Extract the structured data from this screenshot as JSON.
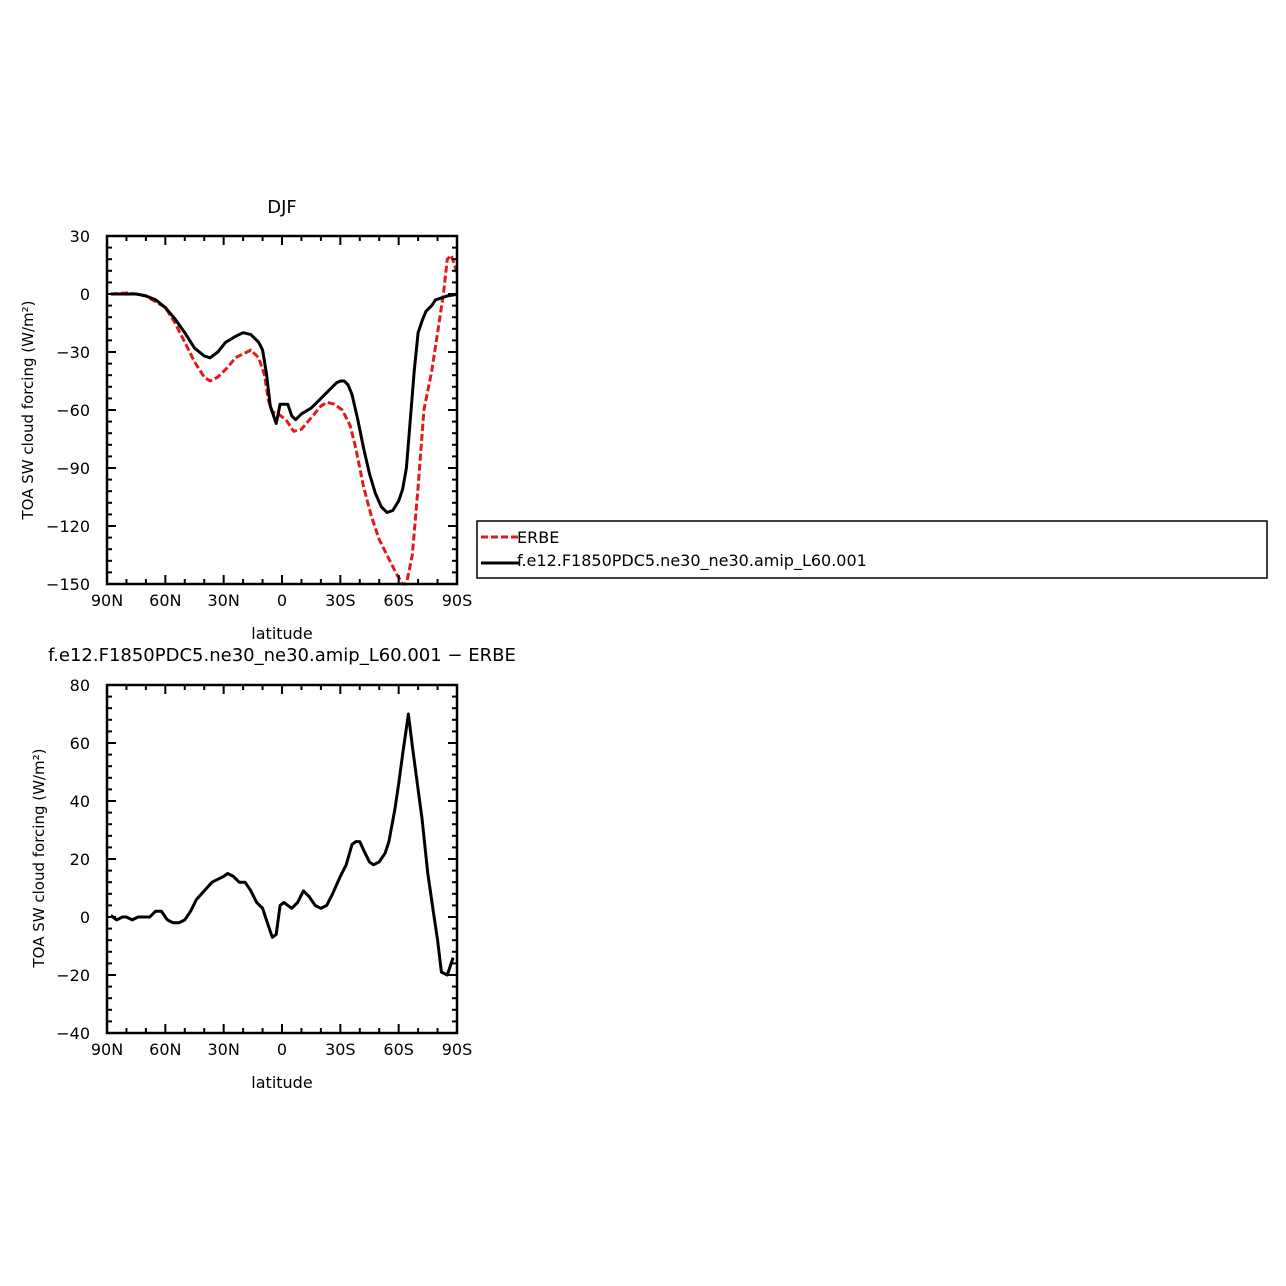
{
  "chart_data": [
    {
      "type": "line",
      "title": "DJF",
      "xlabel": "latitude",
      "ylabel": "TOA SW cloud forcing (W/m²)",
      "xlim": [
        90,
        -90
      ],
      "ylim": [
        -150,
        30
      ],
      "x_tick_values": [
        90,
        60,
        30,
        0,
        -30,
        -60,
        -90
      ],
      "x_tick_labels": [
        "90N",
        "60N",
        "30N",
        "0",
        "30S",
        "60S",
        "90S"
      ],
      "y_tick_values": [
        30,
        0,
        -30,
        -60,
        -90,
        -120,
        -150
      ],
      "y_tick_labels": [
        "30",
        "0",
        "−30",
        "−60",
        "−90",
        "−120",
        "−150"
      ],
      "legend": "right",
      "series": [
        {
          "name": "ERBE",
          "color": "#e31a1c",
          "dash": "dashed",
          "points": [
            [
              88,
              0
            ],
            [
              80,
              0.5
            ],
            [
              75,
              0
            ],
            [
              70,
              -1
            ],
            [
              65,
              -4
            ],
            [
              60,
              -7
            ],
            [
              55,
              -15
            ],
            [
              50,
              -25
            ],
            [
              45,
              -35
            ],
            [
              40,
              -43
            ],
            [
              37,
              -45
            ],
            [
              33,
              -43
            ],
            [
              28,
              -38
            ],
            [
              24,
              -33
            ],
            [
              20,
              -31
            ],
            [
              16,
              -29
            ],
            [
              12,
              -33
            ],
            [
              9,
              -42
            ],
            [
              7,
              -55
            ],
            [
              5,
              -61
            ],
            [
              2,
              -62
            ],
            [
              -2,
              -65
            ],
            [
              -6,
              -71
            ],
            [
              -10,
              -70
            ],
            [
              -15,
              -64
            ],
            [
              -20,
              -58
            ],
            [
              -23,
              -56
            ],
            [
              -27,
              -57
            ],
            [
              -31,
              -60
            ],
            [
              -35,
              -68
            ],
            [
              -38,
              -80
            ],
            [
              -42,
              -100
            ],
            [
              -46,
              -115
            ],
            [
              -50,
              -127
            ],
            [
              -55,
              -137
            ],
            [
              -59,
              -145
            ],
            [
              -62,
              -150
            ],
            [
              -64,
              -150
            ],
            [
              -67,
              -135
            ],
            [
              -70,
              -100
            ],
            [
              -73,
              -60
            ],
            [
              -77,
              -40
            ],
            [
              -80,
              -20
            ],
            [
              -83,
              0
            ],
            [
              -85,
              18
            ],
            [
              -87,
              20
            ],
            [
              -90,
              11
            ]
          ]
        },
        {
          "name": "f.e12.F1850PDC5.ne30_ne30.amip_L60.001",
          "color": "#000000",
          "dash": "solid",
          "points": [
            [
              88,
              0
            ],
            [
              80,
              0
            ],
            [
              75,
              0
            ],
            [
              70,
              -1
            ],
            [
              65,
              -3
            ],
            [
              60,
              -7
            ],
            [
              55,
              -13
            ],
            [
              50,
              -20
            ],
            [
              45,
              -28
            ],
            [
              40,
              -32
            ],
            [
              37,
              -33
            ],
            [
              33,
              -30
            ],
            [
              29,
              -25
            ],
            [
              24,
              -22
            ],
            [
              20,
              -20
            ],
            [
              16,
              -21
            ],
            [
              12,
              -25
            ],
            [
              10,
              -29
            ],
            [
              8,
              -41
            ],
            [
              6,
              -58
            ],
            [
              3,
              -67
            ],
            [
              1,
              -57
            ],
            [
              -3,
              -57
            ],
            [
              -5,
              -63
            ],
            [
              -7,
              -65
            ],
            [
              -10,
              -62
            ],
            [
              -15,
              -59
            ],
            [
              -20,
              -54
            ],
            [
              -25,
              -49
            ],
            [
              -28,
              -46
            ],
            [
              -30,
              -45
            ],
            [
              -32,
              -45
            ],
            [
              -34,
              -47
            ],
            [
              -36,
              -52
            ],
            [
              -39,
              -65
            ],
            [
              -42,
              -80
            ],
            [
              -45,
              -93
            ],
            [
              -48,
              -103
            ],
            [
              -51,
              -110
            ],
            [
              -54,
              -113
            ],
            [
              -57,
              -112
            ],
            [
              -60,
              -107
            ],
            [
              -62,
              -101
            ],
            [
              -64,
              -90
            ],
            [
              -66,
              -65
            ],
            [
              -68,
              -40
            ],
            [
              -70,
              -20
            ],
            [
              -72,
              -14
            ],
            [
              -74,
              -9
            ],
            [
              -77,
              -6
            ],
            [
              -79,
              -3
            ],
            [
              -82,
              -2
            ],
            [
              -85,
              -1
            ],
            [
              -88,
              -0.5
            ],
            [
              -90,
              0
            ]
          ]
        }
      ]
    },
    {
      "type": "line",
      "title": "f.e12.F1850PDC5.ne30_ne30.amip_L60.001 − ERBE",
      "xlabel": "latitude",
      "ylabel": "TOA SW cloud forcing (W/m²)",
      "xlim": [
        90,
        -90
      ],
      "ylim": [
        -40,
        80
      ],
      "x_tick_values": [
        90,
        60,
        30,
        0,
        -30,
        -60,
        -90
      ],
      "x_tick_labels": [
        "90N",
        "60N",
        "30N",
        "0",
        "30S",
        "60S",
        "90S"
      ],
      "y_tick_values": [
        80,
        60,
        40,
        20,
        0,
        -20,
        -40
      ],
      "y_tick_labels": [
        "80",
        "60",
        "40",
        "20",
        "0",
        "−20",
        "−40"
      ],
      "series": [
        {
          "color": "#000000",
          "dash": "solid",
          "points": [
            [
              88,
              0.5
            ],
            [
              85,
              -1
            ],
            [
              82,
              0
            ],
            [
              80,
              0
            ],
            [
              77,
              -1
            ],
            [
              74,
              0
            ],
            [
              71,
              0
            ],
            [
              68,
              0
            ],
            [
              65,
              2
            ],
            [
              62,
              2
            ],
            [
              59,
              -1
            ],
            [
              56,
              -2
            ],
            [
              53,
              -2
            ],
            [
              50,
              -1
            ],
            [
              47,
              2
            ],
            [
              44,
              6
            ],
            [
              40,
              9
            ],
            [
              36,
              12
            ],
            [
              33,
              13
            ],
            [
              30,
              14
            ],
            [
              28,
              15
            ],
            [
              25,
              14
            ],
            [
              22,
              12
            ],
            [
              19,
              12
            ],
            [
              16,
              9
            ],
            [
              13,
              5
            ],
            [
              10,
              3
            ],
            [
              8,
              -1
            ],
            [
              5,
              -7
            ],
            [
              3,
              -6
            ],
            [
              1,
              4
            ],
            [
              -1,
              5
            ],
            [
              -3,
              4
            ],
            [
              -5,
              3
            ],
            [
              -8,
              5
            ],
            [
              -11,
              9
            ],
            [
              -14,
              7
            ],
            [
              -17,
              4
            ],
            [
              -20,
              3
            ],
            [
              -23,
              4
            ],
            [
              -26,
              8
            ],
            [
              -30,
              14
            ],
            [
              -33,
              18
            ],
            [
              -36,
              25
            ],
            [
              -38,
              26
            ],
            [
              -40,
              26
            ],
            [
              -42,
              23
            ],
            [
              -45,
              19
            ],
            [
              -47,
              18
            ],
            [
              -50,
              19
            ],
            [
              -53,
              22
            ],
            [
              -55,
              26
            ],
            [
              -58,
              37
            ],
            [
              -60,
              46
            ],
            [
              -62,
              56
            ],
            [
              -65,
              70
            ],
            [
              -67,
              59
            ],
            [
              -70,
              44
            ],
            [
              -72,
              34
            ],
            [
              -75,
              15
            ],
            [
              -78,
              1
            ],
            [
              -80,
              -8
            ],
            [
              -82,
              -19
            ],
            [
              -85,
              -20
            ],
            [
              -88,
              -14
            ]
          ]
        }
      ]
    }
  ]
}
